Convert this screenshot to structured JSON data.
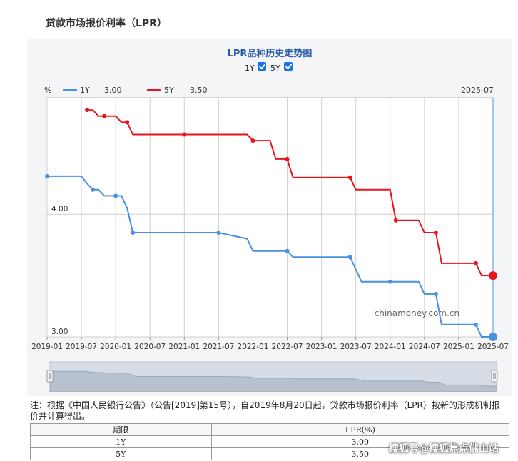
{
  "page": {
    "heading": "贷款市场报价利率（LPR）"
  },
  "chart_data": {
    "type": "line",
    "title": "LPR品种历史走势图",
    "ylabel": "%",
    "ylim": [
      3.0,
      4.95
    ],
    "ytick_labels": [
      "3.00",
      "4.00"
    ],
    "yticks": [
      3.0,
      4.0
    ],
    "xlim": [
      "2019-01",
      "2025-07"
    ],
    "xtick_labels": [
      "2019-01",
      "2019-07",
      "2020-01",
      "2020-07",
      "2021-01",
      "2021-07",
      "2022-01",
      "2022-07",
      "2023-01",
      "2023-07",
      "2024-01",
      "2024-07",
      "2025-01",
      "2025-07"
    ],
    "cursor_date": "2025-07",
    "legend_placement": "top-left",
    "series_toggles": [
      {
        "label": "1Y",
        "checked": true
      },
      {
        "label": "5Y",
        "checked": true
      }
    ],
    "series": [
      {
        "name": "1Y",
        "current_value": "3.00",
        "color": "#4a90e2",
        "x": [
          "2019-01",
          "2019-07",
          "2019-08",
          "2019-09",
          "2019-10",
          "2019-11",
          "2020-01",
          "2020-02",
          "2020-03",
          "2020-04",
          "2020-07",
          "2021-01",
          "2021-07",
          "2021-12",
          "2022-01",
          "2022-07",
          "2022-08",
          "2023-01",
          "2023-06",
          "2023-07",
          "2023-08",
          "2024-01",
          "2024-06",
          "2024-07",
          "2024-09",
          "2024-10",
          "2025-01",
          "2025-04",
          "2025-05",
          "2025-07"
        ],
        "y": [
          4.31,
          4.31,
          4.25,
          4.2,
          4.2,
          4.15,
          4.15,
          4.15,
          4.05,
          3.85,
          3.85,
          3.85,
          3.85,
          3.8,
          3.7,
          3.7,
          3.65,
          3.65,
          3.65,
          3.55,
          3.45,
          3.45,
          3.45,
          3.35,
          3.35,
          3.1,
          3.1,
          3.1,
          3.0,
          3.0
        ]
      },
      {
        "name": "5Y",
        "current_value": "3.50",
        "color": "#e8141c",
        "x": [
          "2019-08",
          "2019-09",
          "2019-10",
          "2019-11",
          "2020-01",
          "2020-02",
          "2020-03",
          "2020-04",
          "2020-07",
          "2021-01",
          "2021-07",
          "2021-12",
          "2022-01",
          "2022-04",
          "2022-05",
          "2022-07",
          "2022-08",
          "2023-01",
          "2023-06",
          "2023-07",
          "2024-01",
          "2024-02",
          "2024-06",
          "2024-07",
          "2024-09",
          "2024-10",
          "2025-01",
          "2025-04",
          "2025-05",
          "2025-07"
        ],
        "y": [
          4.85,
          4.85,
          4.8,
          4.8,
          4.8,
          4.75,
          4.75,
          4.65,
          4.65,
          4.65,
          4.65,
          4.65,
          4.6,
          4.6,
          4.45,
          4.45,
          4.3,
          4.3,
          4.3,
          4.2,
          4.2,
          3.95,
          3.95,
          3.85,
          3.85,
          3.6,
          3.6,
          3.6,
          3.5,
          3.5
        ]
      }
    ],
    "source_label": "chinamoney.com.cn"
  },
  "note": "注：根据《中国人民银行公告》（公告[2019]第15号），自2019年8月20日起，贷款市场报价利率（LPR）按新的形成机制报价并计算得出。",
  "table": {
    "headers": [
      "期限",
      "LPR(%)"
    ],
    "rows": [
      [
        "1Y",
        "3.00"
      ],
      [
        "5Y",
        "3.50"
      ]
    ]
  },
  "watermark": "搜狐号@搜狐焦点佛山站",
  "colors": {
    "grid": "#d0d0d0",
    "axis": "#999999",
    "navigator": "#cfd6e0"
  }
}
